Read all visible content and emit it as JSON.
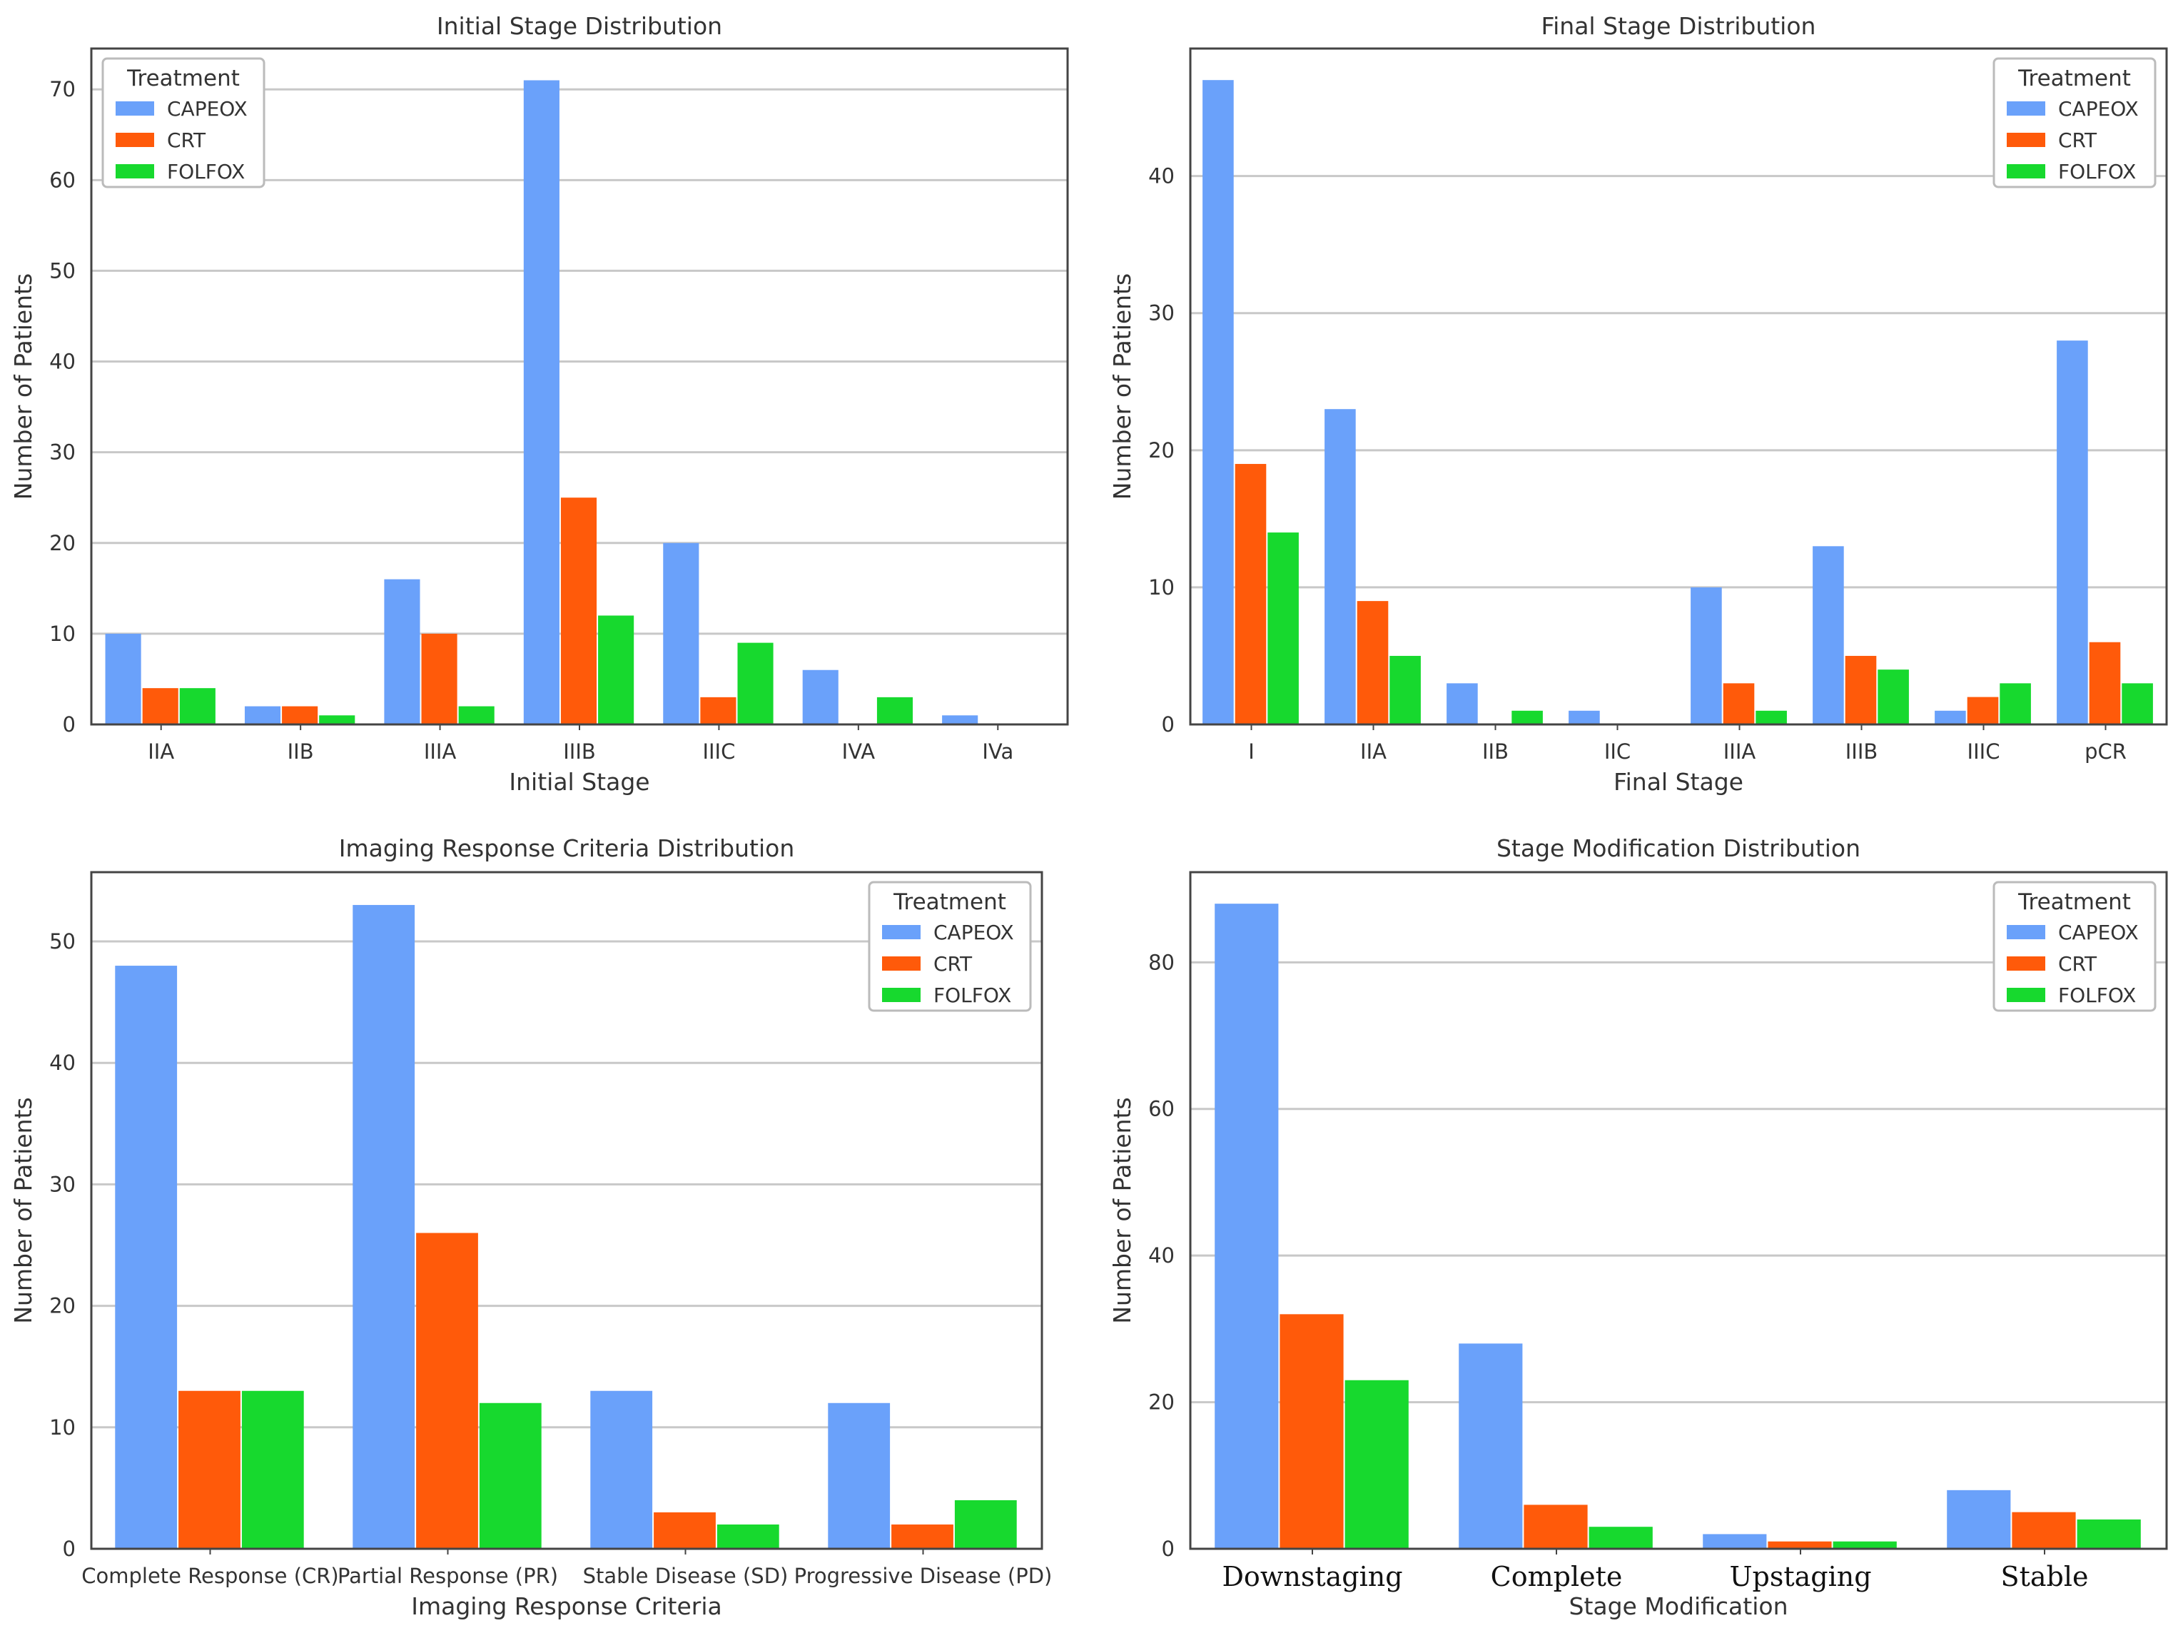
{
  "legend_title": "Treatment",
  "series_names": [
    "CAPEOX",
    "CRT",
    "FOLFOX"
  ],
  "colors": {
    "CAPEOX": "#6aa1fa",
    "CRT": "#ff5a0a",
    "FOLFOX": "#17d92e",
    "axes": "#444444",
    "grid": "#c8c8c8",
    "text": "#333333"
  },
  "chart_data": [
    {
      "type": "bar",
      "title": "Initial Stage Distribution",
      "xlabel": "Initial Stage",
      "ylabel": "Number of Patients",
      "categories": [
        "IIA",
        "IIB",
        "IIIA",
        "IIIB",
        "IIIC",
        "IVA",
        "IVa"
      ],
      "series": [
        {
          "name": "CAPEOX",
          "values": [
            10,
            2,
            16,
            71,
            20,
            6,
            1
          ]
        },
        {
          "name": "CRT",
          "values": [
            4,
            2,
            10,
            25,
            3,
            0,
            0
          ]
        },
        {
          "name": "FOLFOX",
          "values": [
            4,
            1,
            2,
            12,
            9,
            3,
            0
          ]
        }
      ],
      "ylim": [
        0,
        74.5
      ],
      "yticks": [
        0,
        10,
        20,
        30,
        40,
        50,
        60,
        70
      ],
      "legend_position": "top-left",
      "grid": true
    },
    {
      "type": "bar",
      "title": "Final Stage Distribution",
      "xlabel": "Final Stage",
      "ylabel": "Number of Patients",
      "categories": [
        "I",
        "IIA",
        "IIB",
        "IIC",
        "IIIA",
        "IIIB",
        "IIIC",
        "pCR"
      ],
      "series": [
        {
          "name": "CAPEOX",
          "values": [
            47,
            23,
            3,
            1,
            10,
            13,
            1,
            28
          ]
        },
        {
          "name": "CRT",
          "values": [
            19,
            9,
            0,
            0,
            3,
            5,
            2,
            6
          ]
        },
        {
          "name": "FOLFOX",
          "values": [
            14,
            5,
            1,
            0,
            1,
            4,
            3,
            3
          ]
        }
      ],
      "ylim": [
        0,
        49.3
      ],
      "yticks": [
        0,
        10,
        20,
        30,
        40
      ],
      "legend_position": "top-right",
      "grid": true
    },
    {
      "type": "bar",
      "title": "Imaging Response Criteria Distribution",
      "xlabel": "Imaging Response Criteria",
      "ylabel": "Number of Patients",
      "categories": [
        "Complete Response (CR)",
        "Partial Response (PR)",
        "Stable Disease (SD)",
        "Progressive Disease (PD)"
      ],
      "series": [
        {
          "name": "CAPEOX",
          "values": [
            48,
            53,
            13,
            12
          ]
        },
        {
          "name": "CRT",
          "values": [
            13,
            26,
            3,
            2
          ]
        },
        {
          "name": "FOLFOX",
          "values": [
            13,
            12,
            2,
            4
          ]
        }
      ],
      "ylim": [
        0,
        55.7
      ],
      "yticks": [
        0,
        10,
        20,
        30,
        40,
        50
      ],
      "legend_position": "top-right",
      "grid": true
    },
    {
      "type": "bar",
      "title": "Stage Modification Distribution",
      "xlabel": "Stage Modification",
      "ylabel": "Number of Patients",
      "categories": [
        "Downstaging",
        "Complete",
        "Upstaging",
        "Stable"
      ],
      "series": [
        {
          "name": "CAPEOX",
          "values": [
            88,
            28,
            2,
            8
          ]
        },
        {
          "name": "CRT",
          "values": [
            32,
            6,
            1,
            5
          ]
        },
        {
          "name": "FOLFOX",
          "values": [
            23,
            3,
            1,
            4
          ]
        }
      ],
      "ylim": [
        0,
        92.3
      ],
      "yticks": [
        0,
        20,
        40,
        60,
        80
      ],
      "legend_position": "top-right",
      "grid": true,
      "serif_tick_labels": true
    }
  ]
}
